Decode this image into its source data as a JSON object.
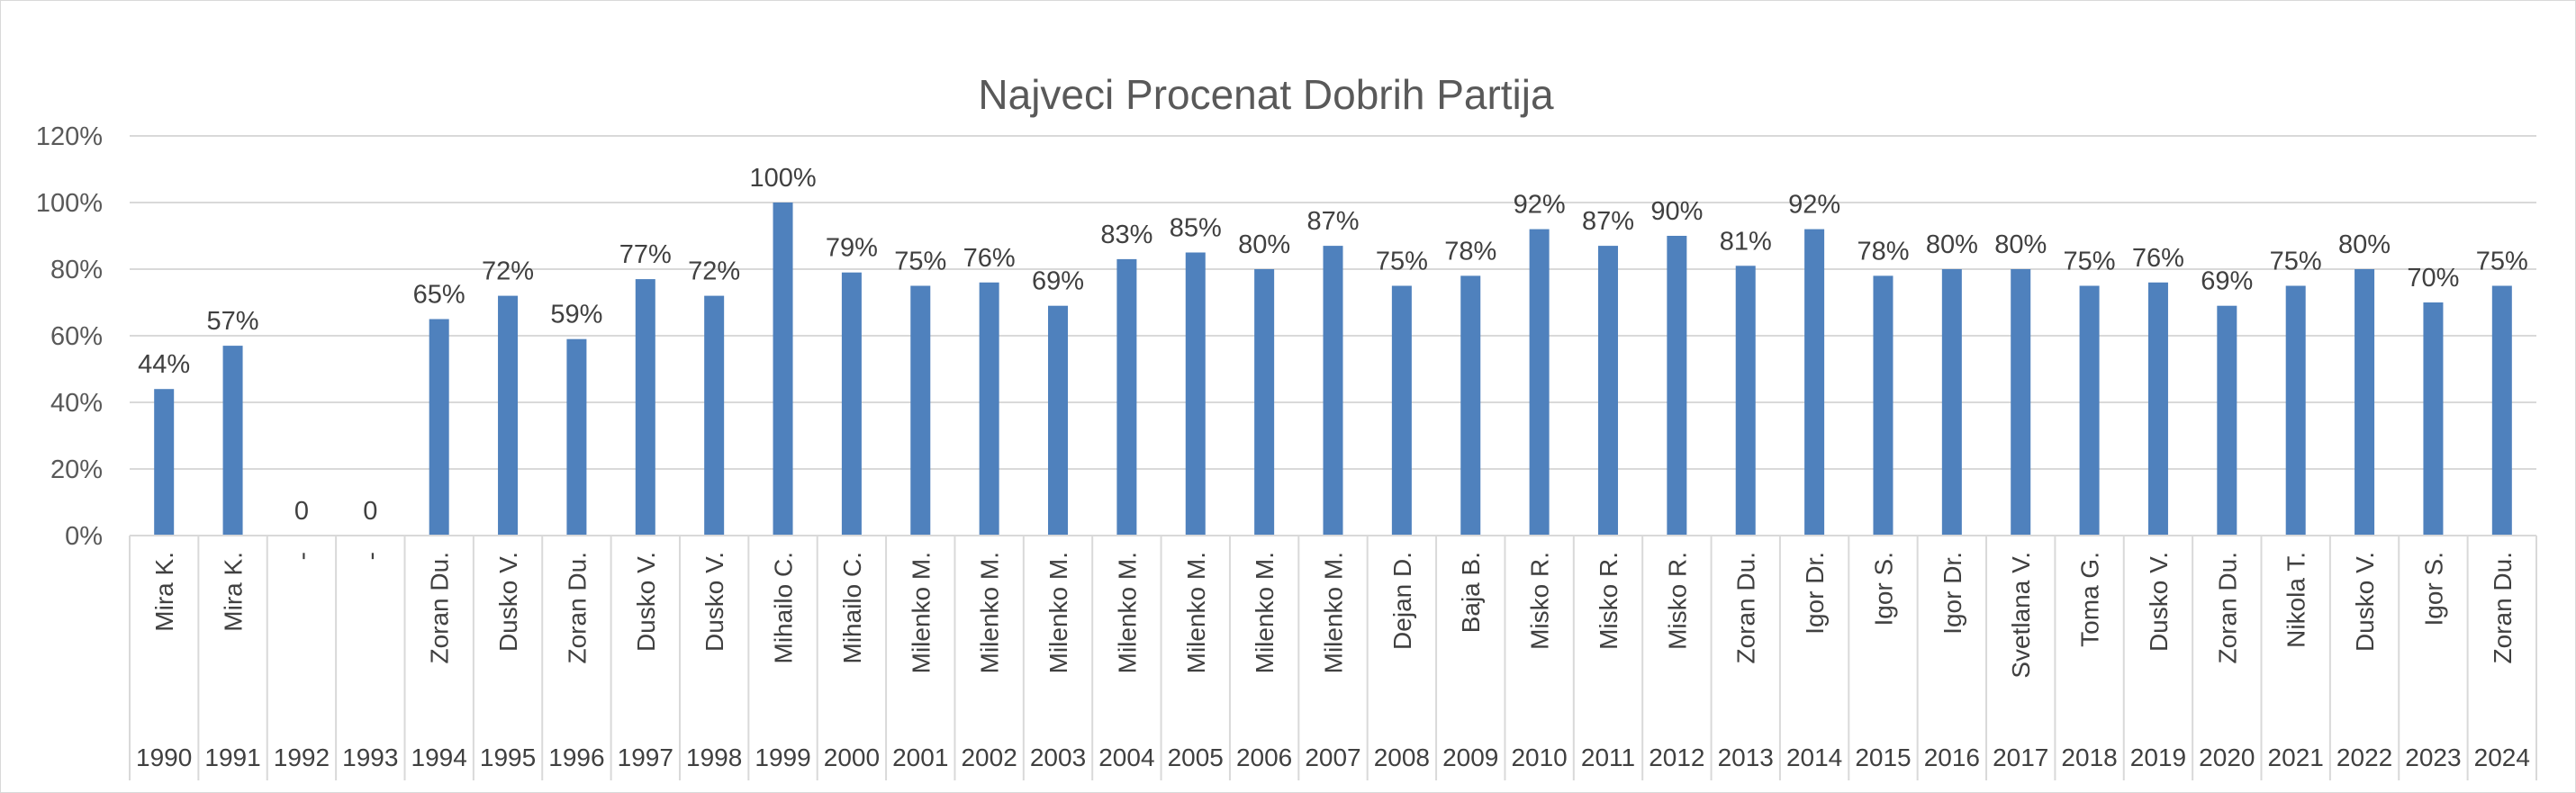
{
  "chart_data": {
    "type": "bar",
    "title": "Najveci Procenat Dobrih Partija",
    "xlabel": "",
    "ylabel": "",
    "ylim": [
      0,
      120
    ],
    "yticks": [
      "0%",
      "20%",
      "40%",
      "60%",
      "80%",
      "100%",
      "120%"
    ],
    "grid": true,
    "legend": "none",
    "bar_color": "#4f81bd",
    "categories": [
      {
        "name": "Mira K.",
        "year": "1990",
        "value": 44,
        "label": "44%"
      },
      {
        "name": "Mira K.",
        "year": "1991",
        "value": 57,
        "label": "57%"
      },
      {
        "name": "-",
        "year": "1992",
        "value": 0,
        "label": "0"
      },
      {
        "name": "-",
        "year": "1993",
        "value": 0,
        "label": "0"
      },
      {
        "name": "Zoran Du.",
        "year": "1994",
        "value": 65,
        "label": "65%"
      },
      {
        "name": "Dusko V.",
        "year": "1995",
        "value": 72,
        "label": "72%"
      },
      {
        "name": "Zoran Du.",
        "year": "1996",
        "value": 59,
        "label": "59%"
      },
      {
        "name": "Dusko V.",
        "year": "1997",
        "value": 77,
        "label": "77%"
      },
      {
        "name": "Dusko V.",
        "year": "1998",
        "value": 72,
        "label": "72%"
      },
      {
        "name": "Mihailo C.",
        "year": "1999",
        "value": 100,
        "label": "100%"
      },
      {
        "name": "Mihailo C.",
        "year": "2000",
        "value": 79,
        "label": "79%"
      },
      {
        "name": "Milenko M.",
        "year": "2001",
        "value": 75,
        "label": "75%"
      },
      {
        "name": "Milenko M.",
        "year": "2002",
        "value": 76,
        "label": "76%"
      },
      {
        "name": "Milenko M.",
        "year": "2003",
        "value": 69,
        "label": "69%"
      },
      {
        "name": "Milenko M.",
        "year": "2004",
        "value": 83,
        "label": "83%"
      },
      {
        "name": "Milenko M.",
        "year": "2005",
        "value": 85,
        "label": "85%"
      },
      {
        "name": "Milenko M.",
        "year": "2006",
        "value": 80,
        "label": "80%"
      },
      {
        "name": "Milenko M.",
        "year": "2007",
        "value": 87,
        "label": "87%"
      },
      {
        "name": "Dejan D.",
        "year": "2008",
        "value": 75,
        "label": "75%"
      },
      {
        "name": "Baja B.",
        "year": "2009",
        "value": 78,
        "label": "78%"
      },
      {
        "name": "Misko R.",
        "year": "2010",
        "value": 92,
        "label": "92%"
      },
      {
        "name": "Misko R.",
        "year": "2011",
        "value": 87,
        "label": "87%"
      },
      {
        "name": "Misko R.",
        "year": "2012",
        "value": 90,
        "label": "90%"
      },
      {
        "name": "Zoran Du.",
        "year": "2013",
        "value": 81,
        "label": "81%"
      },
      {
        "name": "Igor Dr.",
        "year": "2014",
        "value": 92,
        "label": "92%"
      },
      {
        "name": "Igor S.",
        "year": "2015",
        "value": 78,
        "label": "78%"
      },
      {
        "name": "Igor Dr.",
        "year": "2016",
        "value": 80,
        "label": "80%"
      },
      {
        "name": "Svetlana V.",
        "year": "2017",
        "value": 80,
        "label": "80%"
      },
      {
        "name": "Toma G.",
        "year": "2018",
        "value": 75,
        "label": "75%"
      },
      {
        "name": "Dusko V.",
        "year": "2019",
        "value": 76,
        "label": "76%"
      },
      {
        "name": "Zoran Du.",
        "year": "2020",
        "value": 69,
        "label": "69%"
      },
      {
        "name": "Nikola T.",
        "year": "2021",
        "value": 75,
        "label": "75%"
      },
      {
        "name": "Dusko V.",
        "year": "2022",
        "value": 80,
        "label": "80%"
      },
      {
        "name": "Igor S.",
        "year": "2023",
        "value": 70,
        "label": "70%"
      },
      {
        "name": "Zoran Du.",
        "year": "2024",
        "value": 75,
        "label": "75%"
      }
    ]
  }
}
